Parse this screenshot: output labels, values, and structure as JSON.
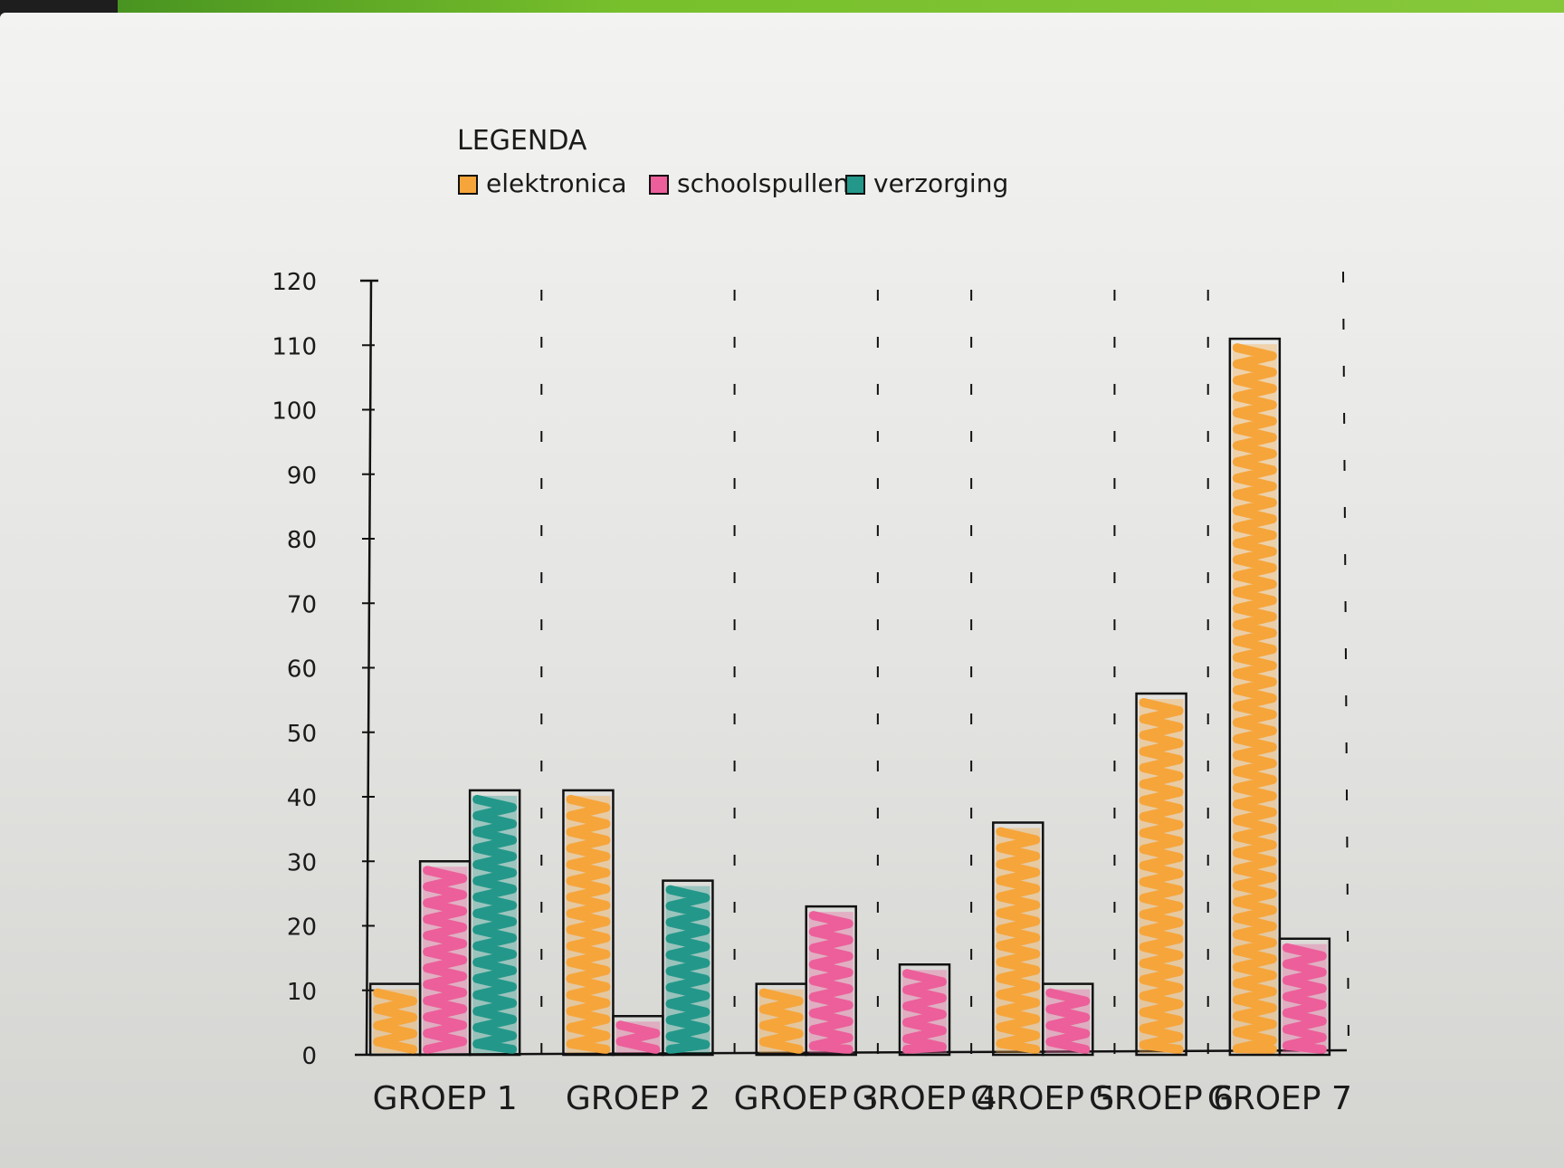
{
  "chart_data": {
    "type": "bar",
    "title": "",
    "legend_title": "LEGENDA",
    "legend_position": "top",
    "xlabel": "",
    "ylabel": "",
    "ylim": [
      0,
      120
    ],
    "yticks": [
      0,
      10,
      20,
      30,
      40,
      50,
      60,
      70,
      80,
      90,
      100,
      110,
      120
    ],
    "grid": false,
    "categories": [
      "GROEP 1",
      "GROEP 2",
      "GROEP 3",
      "GROEP 4",
      "GROEP 5",
      "GROEP 6",
      "GROEP 7"
    ],
    "series": [
      {
        "name": "elektronica",
        "color": "#f6a53b",
        "values": [
          11,
          41,
          11,
          0,
          36,
          56,
          111
        ]
      },
      {
        "name": "schoolspullen",
        "color": "#ec5f9a",
        "values": [
          30,
          6,
          23,
          14,
          11,
          0,
          18
        ]
      },
      {
        "name": "verzorging",
        "color": "#23988a",
        "values": [
          41,
          27,
          0,
          0,
          0,
          0,
          0
        ]
      }
    ]
  }
}
